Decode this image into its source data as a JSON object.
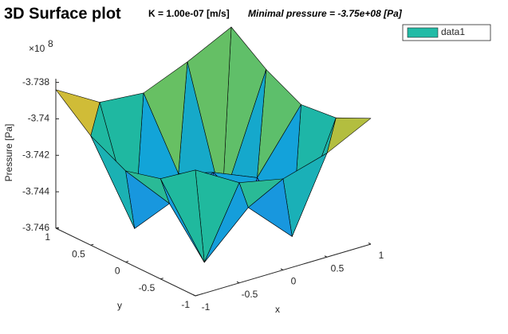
{
  "chart_data": {
    "type": "surface3d",
    "title": "3D Surface plot",
    "subtitle": "K = 1.00e-07 [m/s]",
    "annotation": "Minimal pressure = -3.75e+08 [Pa]",
    "xlabel": "x",
    "ylabel": "y",
    "zlabel": "Pressure [Pa]",
    "z_exponent": {
      "base": "×10",
      "power": "8"
    },
    "colormap": "parula",
    "legend_location": "northeast",
    "x": [
      -1,
      -0.5,
      0,
      0.5,
      1
    ],
    "y": [
      -1,
      -0.5,
      0,
      0.5,
      1
    ],
    "series": [
      {
        "name": "data1",
        "color": "#21bba6",
        "z": [
          [
            -373910000,
            -374050000,
            -374100000,
            -374030000,
            -373910000
          ],
          [
            -374050000,
            -374580000,
            -374350000,
            -374580000,
            -374000000
          ],
          [
            -374100000,
            -374350000,
            -374250000,
            -374350000,
            -374020000
          ],
          [
            -374000000,
            -374580000,
            -374350000,
            -374580000,
            -373920000
          ],
          [
            -373840000,
            -373980000,
            -374000000,
            -373900000,
            -373780000
          ]
        ]
      }
    ],
    "xlim": [
      -1,
      1
    ],
    "xticks": [
      -1,
      -0.5,
      0,
      0.5,
      1
    ],
    "ylim": [
      -1,
      1
    ],
    "yticks": [
      -1,
      -0.5,
      0,
      0.5,
      1
    ],
    "zlim": [
      -374600000,
      -373780000
    ],
    "zticks": [
      {
        "value": -374600000,
        "label": "-3.746"
      },
      {
        "value": -374400000,
        "label": "-3.744"
      },
      {
        "value": -374200000,
        "label": "-3.742"
      },
      {
        "value": -374000000,
        "label": "-3.74"
      },
      {
        "value": -373800000,
        "label": "-3.738"
      }
    ]
  }
}
